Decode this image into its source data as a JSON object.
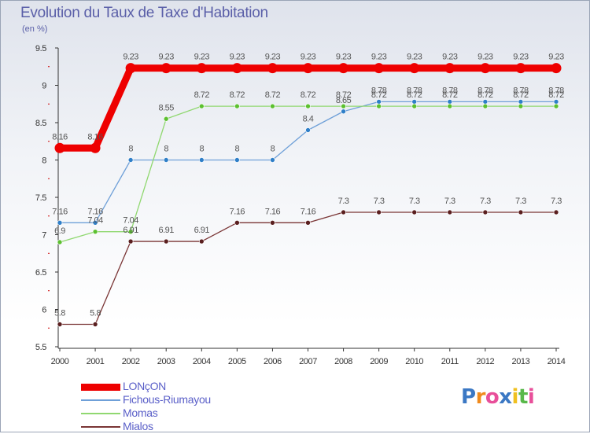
{
  "chart_data": {
    "type": "line",
    "title": "Evolution du Taux de Taxe d'Habitation",
    "subtitle": "(en %)",
    "categories": [
      "2000",
      "2001",
      "2002",
      "2003",
      "2004",
      "2005",
      "2006",
      "2007",
      "2008",
      "2009",
      "2010",
      "2011",
      "2012",
      "2013",
      "2014"
    ],
    "ylim": [
      5.5,
      9.5
    ],
    "yticks": [
      5.5,
      6,
      6.5,
      7,
      7.5,
      8,
      8.5,
      9,
      9.5
    ],
    "ytick_labels": [
      "5.5",
      "6",
      "6.5",
      "7",
      "7.5",
      "8",
      "8.5",
      "9",
      "9.5"
    ],
    "grid": false,
    "legend_position": "bottom-left",
    "series": [
      {
        "name": "LONçON",
        "color": "#ee0000",
        "line_width": 9,
        "values": [
          8.16,
          8.16,
          9.23,
          9.23,
          9.23,
          9.23,
          9.23,
          9.23,
          9.23,
          9.23,
          9.23,
          9.23,
          9.23,
          9.23,
          9.23
        ],
        "labels": [
          "8.16",
          "8.16",
          "9.23",
          "9.23",
          "9.23",
          "9.23",
          "9.23",
          "9.23",
          "9.23",
          "9.23",
          "9.23",
          "9.23",
          "9.23",
          "9.23",
          "9.23"
        ]
      },
      {
        "name": "Fichous-Riumayou",
        "color": "#6fa0d8",
        "point_color": "#2f7fc8",
        "line_width": 1.3,
        "values": [
          7.16,
          7.16,
          8,
          8,
          8,
          8,
          8,
          8.4,
          8.65,
          8.78,
          8.78,
          8.78,
          8.78,
          8.78,
          8.78
        ],
        "labels": [
          "7.16",
          "7.16",
          "8",
          "8",
          "8",
          "8",
          "8",
          "8.4",
          "8.65",
          "8.78",
          "8.78",
          "8.78",
          "8.78",
          "8.78",
          "8.78"
        ]
      },
      {
        "name": "Momas",
        "color": "#90d870",
        "point_color": "#5cc030",
        "line_width": 1.3,
        "values": [
          6.9,
          7.04,
          7.04,
          8.55,
          8.72,
          8.72,
          8.72,
          8.72,
          8.72,
          8.72,
          8.72,
          8.72,
          8.72,
          8.72,
          8.72
        ],
        "labels": [
          "6.9",
          "7.04",
          "7.04",
          "8.55",
          "8.72",
          "8.72",
          "8.72",
          "8.72",
          "8.72",
          "8.72",
          "8.72",
          "8.72",
          "8.72",
          "8.72",
          "8.72"
        ]
      },
      {
        "name": "Mialos",
        "color": "#7a3535",
        "point_color": "#5a1f1f",
        "line_width": 1.3,
        "values": [
          5.8,
          5.8,
          6.91,
          6.91,
          6.91,
          7.16,
          7.16,
          7.16,
          7.3,
          7.3,
          7.3,
          7.3,
          7.3,
          7.3,
          7.3
        ],
        "labels": [
          "5.8",
          "5.8",
          "6.91",
          "6.91",
          "6.91",
          "7.16",
          "7.16",
          "7.16",
          "7.3",
          "7.3",
          "7.3",
          "7.3",
          "7.3",
          "7.3",
          "7.3"
        ]
      }
    ]
  },
  "logo": {
    "letters": [
      "P",
      "r",
      "o",
      "x",
      "i",
      "t",
      "i"
    ],
    "colors": [
      "#3b78c4",
      "#f08a1c",
      "#e84f9a",
      "#3b78c4",
      "#f0c020",
      "#58b84a",
      "#e84f9a"
    ]
  }
}
